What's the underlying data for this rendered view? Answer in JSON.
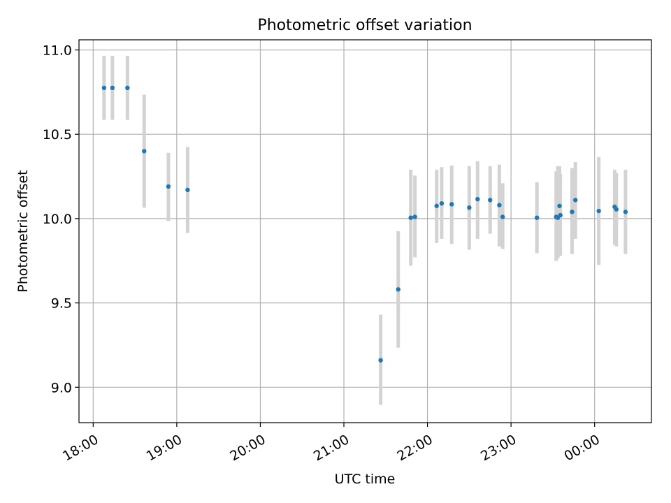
{
  "chart_data": {
    "type": "scatter",
    "title": "Photometric offset variation",
    "xlabel": "UTC time",
    "ylabel": "Photometric offset",
    "x_unit": "hours (UTC), values past 24 wrap to next day",
    "xlim": [
      17.83,
      24.68
    ],
    "ylim": [
      8.79,
      11.06
    ],
    "xticks": [
      {
        "value": 18,
        "label": "18:00"
      },
      {
        "value": 19,
        "label": "19:00"
      },
      {
        "value": 20,
        "label": "20:00"
      },
      {
        "value": 21,
        "label": "21:00"
      },
      {
        "value": 22,
        "label": "22:00"
      },
      {
        "value": 23,
        "label": "23:00"
      },
      {
        "value": 24,
        "label": "00:00"
      }
    ],
    "yticks": [
      {
        "value": 9.0,
        "label": "9.0"
      },
      {
        "value": 9.5,
        "label": "9.5"
      },
      {
        "value": 10.0,
        "label": "10.0"
      },
      {
        "value": 10.5,
        "label": "10.5"
      },
      {
        "value": 11.0,
        "label": "11.0"
      }
    ],
    "grid": true,
    "colors": {
      "point": "#1f77b4",
      "errorbar": "#d3d3d3",
      "grid": "#b0b0b0"
    },
    "points": [
      {
        "x": 18.13,
        "y": 10.775,
        "ylo": 10.585,
        "yhi": 10.965
      },
      {
        "x": 18.23,
        "y": 10.775,
        "ylo": 10.585,
        "yhi": 10.965
      },
      {
        "x": 18.41,
        "y": 10.775,
        "ylo": 10.585,
        "yhi": 10.965
      },
      {
        "x": 18.61,
        "y": 10.4,
        "ylo": 10.065,
        "yhi": 10.735
      },
      {
        "x": 18.9,
        "y": 10.19,
        "ylo": 9.985,
        "yhi": 10.39
      },
      {
        "x": 19.13,
        "y": 10.17,
        "ylo": 9.915,
        "yhi": 10.425
      },
      {
        "x": 21.44,
        "y": 9.16,
        "ylo": 8.895,
        "yhi": 9.43
      },
      {
        "x": 21.65,
        "y": 9.58,
        "ylo": 9.235,
        "yhi": 9.925
      },
      {
        "x": 21.8,
        "y": 10.005,
        "ylo": 9.72,
        "yhi": 10.29
      },
      {
        "x": 21.85,
        "y": 10.01,
        "ylo": 9.77,
        "yhi": 10.255
      },
      {
        "x": 22.11,
        "y": 10.075,
        "ylo": 9.855,
        "yhi": 10.29
      },
      {
        "x": 22.17,
        "y": 10.09,
        "ylo": 9.88,
        "yhi": 10.305
      },
      {
        "x": 22.29,
        "y": 10.085,
        "ylo": 9.85,
        "yhi": 10.315
      },
      {
        "x": 22.5,
        "y": 10.065,
        "ylo": 9.815,
        "yhi": 10.31
      },
      {
        "x": 22.6,
        "y": 10.115,
        "ylo": 9.88,
        "yhi": 10.34
      },
      {
        "x": 22.75,
        "y": 10.11,
        "ylo": 9.91,
        "yhi": 10.31
      },
      {
        "x": 22.86,
        "y": 10.08,
        "ylo": 9.835,
        "yhi": 10.32
      },
      {
        "x": 22.9,
        "y": 10.01,
        "ylo": 9.82,
        "yhi": 10.21
      },
      {
        "x": 23.31,
        "y": 10.005,
        "ylo": 9.795,
        "yhi": 10.215
      },
      {
        "x": 23.54,
        "y": 10.01,
        "ylo": 9.75,
        "yhi": 10.28
      },
      {
        "x": 23.56,
        "y": 10.005,
        "ylo": 9.765,
        "yhi": 10.31
      },
      {
        "x": 23.58,
        "y": 10.075,
        "ylo": 9.845,
        "yhi": 10.31
      },
      {
        "x": 23.59,
        "y": 10.02,
        "ylo": 9.78,
        "yhi": 10.265
      },
      {
        "x": 23.73,
        "y": 10.04,
        "ylo": 9.79,
        "yhi": 10.3
      },
      {
        "x": 23.77,
        "y": 10.11,
        "ylo": 9.88,
        "yhi": 10.335
      },
      {
        "x": 24.05,
        "y": 10.045,
        "ylo": 9.725,
        "yhi": 10.365
      },
      {
        "x": 24.24,
        "y": 10.07,
        "ylo": 9.845,
        "yhi": 10.29
      },
      {
        "x": 24.26,
        "y": 10.055,
        "ylo": 9.835,
        "yhi": 10.27
      },
      {
        "x": 24.37,
        "y": 10.04,
        "ylo": 9.79,
        "yhi": 10.29
      }
    ]
  }
}
